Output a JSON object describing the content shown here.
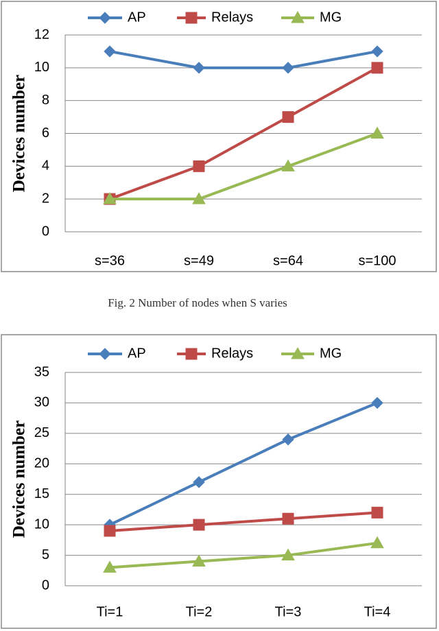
{
  "chart_data": [
    {
      "type": "line",
      "ylabel": "Devices number",
      "categories": [
        "s=36",
        "s=49",
        "s=64",
        "s=100"
      ],
      "series": [
        {
          "name": "AP",
          "color": "#4a7ebb",
          "marker": "diamond",
          "values": [
            11,
            10,
            10,
            11
          ]
        },
        {
          "name": "Relays",
          "color": "#be4b48",
          "marker": "square",
          "values": [
            2,
            4,
            7,
            10
          ]
        },
        {
          "name": "MG",
          "color": "#98b954",
          "marker": "triangle",
          "values": [
            2,
            2,
            4,
            6
          ]
        }
      ],
      "ylim": [
        0,
        12
      ],
      "yticks": [
        0,
        2,
        4,
        6,
        8,
        10,
        12
      ],
      "grid": true,
      "legend": "top"
    },
    {
      "type": "line",
      "ylabel": "Devices number",
      "categories": [
        "Ti=1",
        "Ti=2",
        "Ti=3",
        "Ti=4"
      ],
      "series": [
        {
          "name": "AP",
          "color": "#4a7ebb",
          "marker": "diamond",
          "values": [
            10,
            17,
            24,
            30
          ]
        },
        {
          "name": "Relays",
          "color": "#be4b48",
          "marker": "square",
          "values": [
            9,
            10,
            11,
            12
          ]
        },
        {
          "name": "MG",
          "color": "#98b954",
          "marker": "triangle",
          "values": [
            3,
            4,
            5,
            7
          ]
        }
      ],
      "ylim": [
        0,
        35
      ],
      "yticks": [
        0,
        5,
        10,
        15,
        20,
        25,
        30,
        35
      ],
      "grid": true,
      "legend": "top"
    }
  ],
  "caption": "Fig. 2 Number of nodes when S varies"
}
